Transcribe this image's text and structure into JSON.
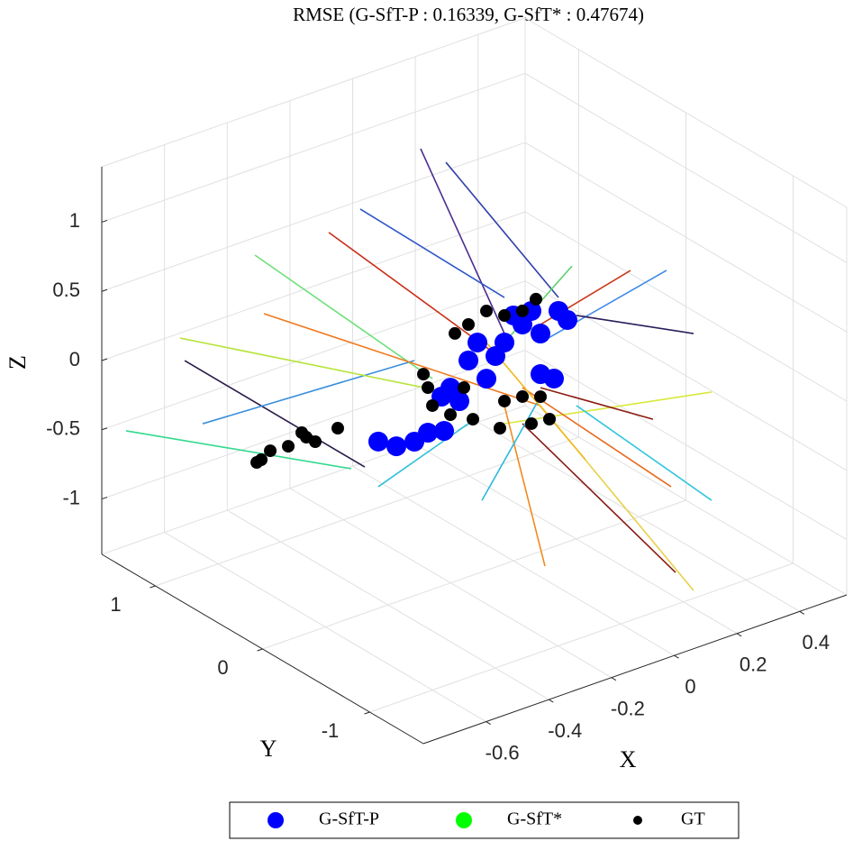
{
  "chart_data": {
    "type": "scatter3d",
    "title": "RMSE (G-SfT-P : 0.16339, G-SfT* : 0.47674)",
    "xlabel": "X",
    "ylabel": "Y",
    "zlabel": "Z",
    "xlim": [
      -0.8,
      0.55
    ],
    "ylim": [
      -1.5,
      1.5
    ],
    "zlim": [
      -1.4,
      1.4
    ],
    "xticks": [
      -0.6,
      -0.4,
      -0.2,
      0,
      0.2,
      0.4
    ],
    "yticks": [
      -1,
      0,
      1
    ],
    "zticks": [
      -1,
      -0.5,
      0,
      0.5,
      1
    ],
    "grid": true,
    "legend": "bottom-outside",
    "series": [
      {
        "name": "G-SfT-P",
        "color": "#0000ff",
        "x": [
          0,
          0,
          0,
          0,
          0,
          0,
          0,
          0,
          0,
          0,
          0,
          0,
          0,
          0,
          0,
          0,
          0,
          0,
          0,
          0,
          0
        ],
        "y": [
          0.42,
          0.252,
          0.084,
          -0.084,
          -0.252,
          -0.42,
          -0.504,
          0.588,
          0.672,
          0.504,
          -0.252,
          -0.378,
          0.168,
          0.0,
          0.336,
          -0.168,
          1.261,
          1.092,
          0.924,
          0.798,
          0.647
        ],
        "z": [
          -0.144,
          -0.199,
          0.139,
          0.346,
          0.357,
          0.597,
          0.57,
          -0.417,
          -0.52,
          -0.476,
          0.064,
          0.089,
          0.003,
          0.373,
          0.024,
          0.482,
          -1.113,
          -1.07,
          -0.96,
          -0.838,
          -0.756
        ]
      },
      {
        "name": "G-SfT*",
        "color": "#00ff00",
        "x": [],
        "y": [],
        "z": []
      },
      {
        "name": "GT",
        "color": "#000000",
        "x": [
          0,
          0,
          0,
          0,
          0,
          0,
          0,
          0,
          0,
          0,
          0,
          0,
          0,
          0,
          0,
          0,
          0,
          0,
          -0.5,
          -0.5,
          -0.5,
          -0.5,
          -0.5,
          -0.5,
          -0.5,
          -0.5
        ],
        "y": [
          0.252,
          0.084,
          -0.084,
          -0.21,
          0.42,
          0.546,
          0.84,
          0.756,
          0.588,
          0.462,
          0.084,
          -0.084,
          -0.252,
          -0.336,
          -0.168,
          0.378,
          0.126,
          0.798,
          0.89,
          0.806,
          0.638,
          0.47,
          0.386,
          0.176,
          0.512,
          0.932
        ],
        "z": [
          0.29,
          0.334,
          0.444,
          0.586,
          0.116,
          -0.006,
          -0.434,
          -0.623,
          -0.612,
          -0.359,
          -0.284,
          -0.175,
          -0.099,
          -0.223,
          -0.332,
          -0.549,
          -0.499,
          -0.512,
          -0.677,
          -0.574,
          -0.465,
          -0.323,
          -0.317,
          -0.124,
          -0.309,
          -0.716
        ]
      }
    ],
    "segments": [
      {
        "color": "#4a2d8f",
        "from": [
          0,
          0.866,
          1.183
        ],
        "to": [
          0,
          0.084,
          0.204
        ]
      },
      {
        "color": "#2e3fa8",
        "from": [
          0,
          0.63,
          1.192
        ],
        "to": [
          0,
          -0.42,
          0.694
        ]
      },
      {
        "color": "#2f56c8",
        "from": [
          0,
          1.429,
          0.49
        ],
        "to": [
          0,
          0.084,
          0.464
        ]
      },
      {
        "color": "#2b1a4a",
        "from": [
          -0.7,
          1.019,
          0.139
        ],
        "to": [
          0,
          1.387,
          -1.354
        ]
      },
      {
        "color": "#3a8fdc",
        "from": [
          -0.7,
          0.851,
          -0.24
        ],
        "to": [
          0,
          0.924,
          -0.374
        ]
      },
      {
        "color": "#6fe07a",
        "from": [
          -0.7,
          0.364,
          1.2
        ],
        "to": [
          0,
          0.756,
          -0.428
        ]
      },
      {
        "color": "#33d98e",
        "from": [
          -0.7,
          1.566,
          -0.617
        ],
        "to": [
          0,
          1.513,
          -1.424
        ]
      },
      {
        "color": "#b8e33a",
        "from": [
          -0.7,
          1.061,
          0.283
        ],
        "to": [
          0,
          0.42,
          -0.405
        ]
      },
      {
        "color": "#f07a20",
        "from": [
          -0.7,
          0.28,
          0.815
        ],
        "to": [
          0,
          -0.252,
          -0.164
        ]
      },
      {
        "color": "#3d88e8",
        "from": [
          0.4,
          -0.258,
          0.498
        ],
        "to": [
          0,
          -0.252,
          0.292
        ]
      },
      {
        "color": "#2a1d5c",
        "from": [
          0.4,
          -0.51,
          0.156
        ],
        "to": [
          0,
          -0.588,
          0.641
        ]
      },
      {
        "color": "#d9e83a",
        "from": [
          0.4,
          -0.678,
          -0.19
        ],
        "to": [
          0,
          0.084,
          -0.447
        ]
      },
      {
        "color": "#33c4e0",
        "from": [
          0.4,
          -0.678,
          -0.972
        ],
        "to": [
          0,
          -0.588,
          -0.01
        ]
      },
      {
        "color": "#e8d04a",
        "from": [
          0.4,
          -0.51,
          -1.7
        ],
        "to": [
          0,
          -0.252,
          -0.164
        ]
      },
      {
        "color": "#8a1a14",
        "from": [
          0.4,
          -0.342,
          -1.646
        ],
        "to": [
          0,
          -0.084,
          -0.37
        ]
      },
      {
        "color": "#e8681c",
        "from": [
          0.4,
          -0.3,
          -1.046
        ],
        "to": [
          0,
          -0.084,
          -0.11
        ]
      },
      {
        "color": "#f08a20",
        "from": [
          0,
          -0.294,
          -1.304
        ],
        "to": [
          0,
          0.084,
          -0.317
        ]
      },
      {
        "color": "#2cb8dc",
        "from": [
          0,
          0.294,
          -1.097
        ],
        "to": [
          0,
          -0.252,
          -0.099
        ]
      },
      {
        "color": "#f0b820",
        "from": [
          0,
          -0.672,
          -0.363
        ],
        "to": [
          0,
          0.252,
          0.062
        ]
      },
      {
        "color": "#c8301a",
        "from": [
          -0.3,
          0.845,
          0.826
        ],
        "to": [
          0,
          0.084,
          0.009
        ]
      },
      {
        "color": "#5ad06a",
        "from": [
          0,
          -0.546,
          0.979
        ],
        "to": [
          0,
          0.084,
          0.139
        ]
      },
      {
        "color": "#c83a1a",
        "from": [
          0.4,
          0.078,
          0.344
        ],
        "to": [
          0,
          -0.252,
          0.422
        ]
      },
      {
        "color": "#2fc0d8",
        "from": [
          0,
          1.261,
          -1.439
        ],
        "to": [
          0,
          0.42,
          -0.6
        ]
      },
      {
        "color": "#8c1c10",
        "from": [
          0.4,
          -0.132,
          -0.635
        ],
        "to": [
          0,
          -0.252,
          -0.034
        ]
      }
    ]
  }
}
